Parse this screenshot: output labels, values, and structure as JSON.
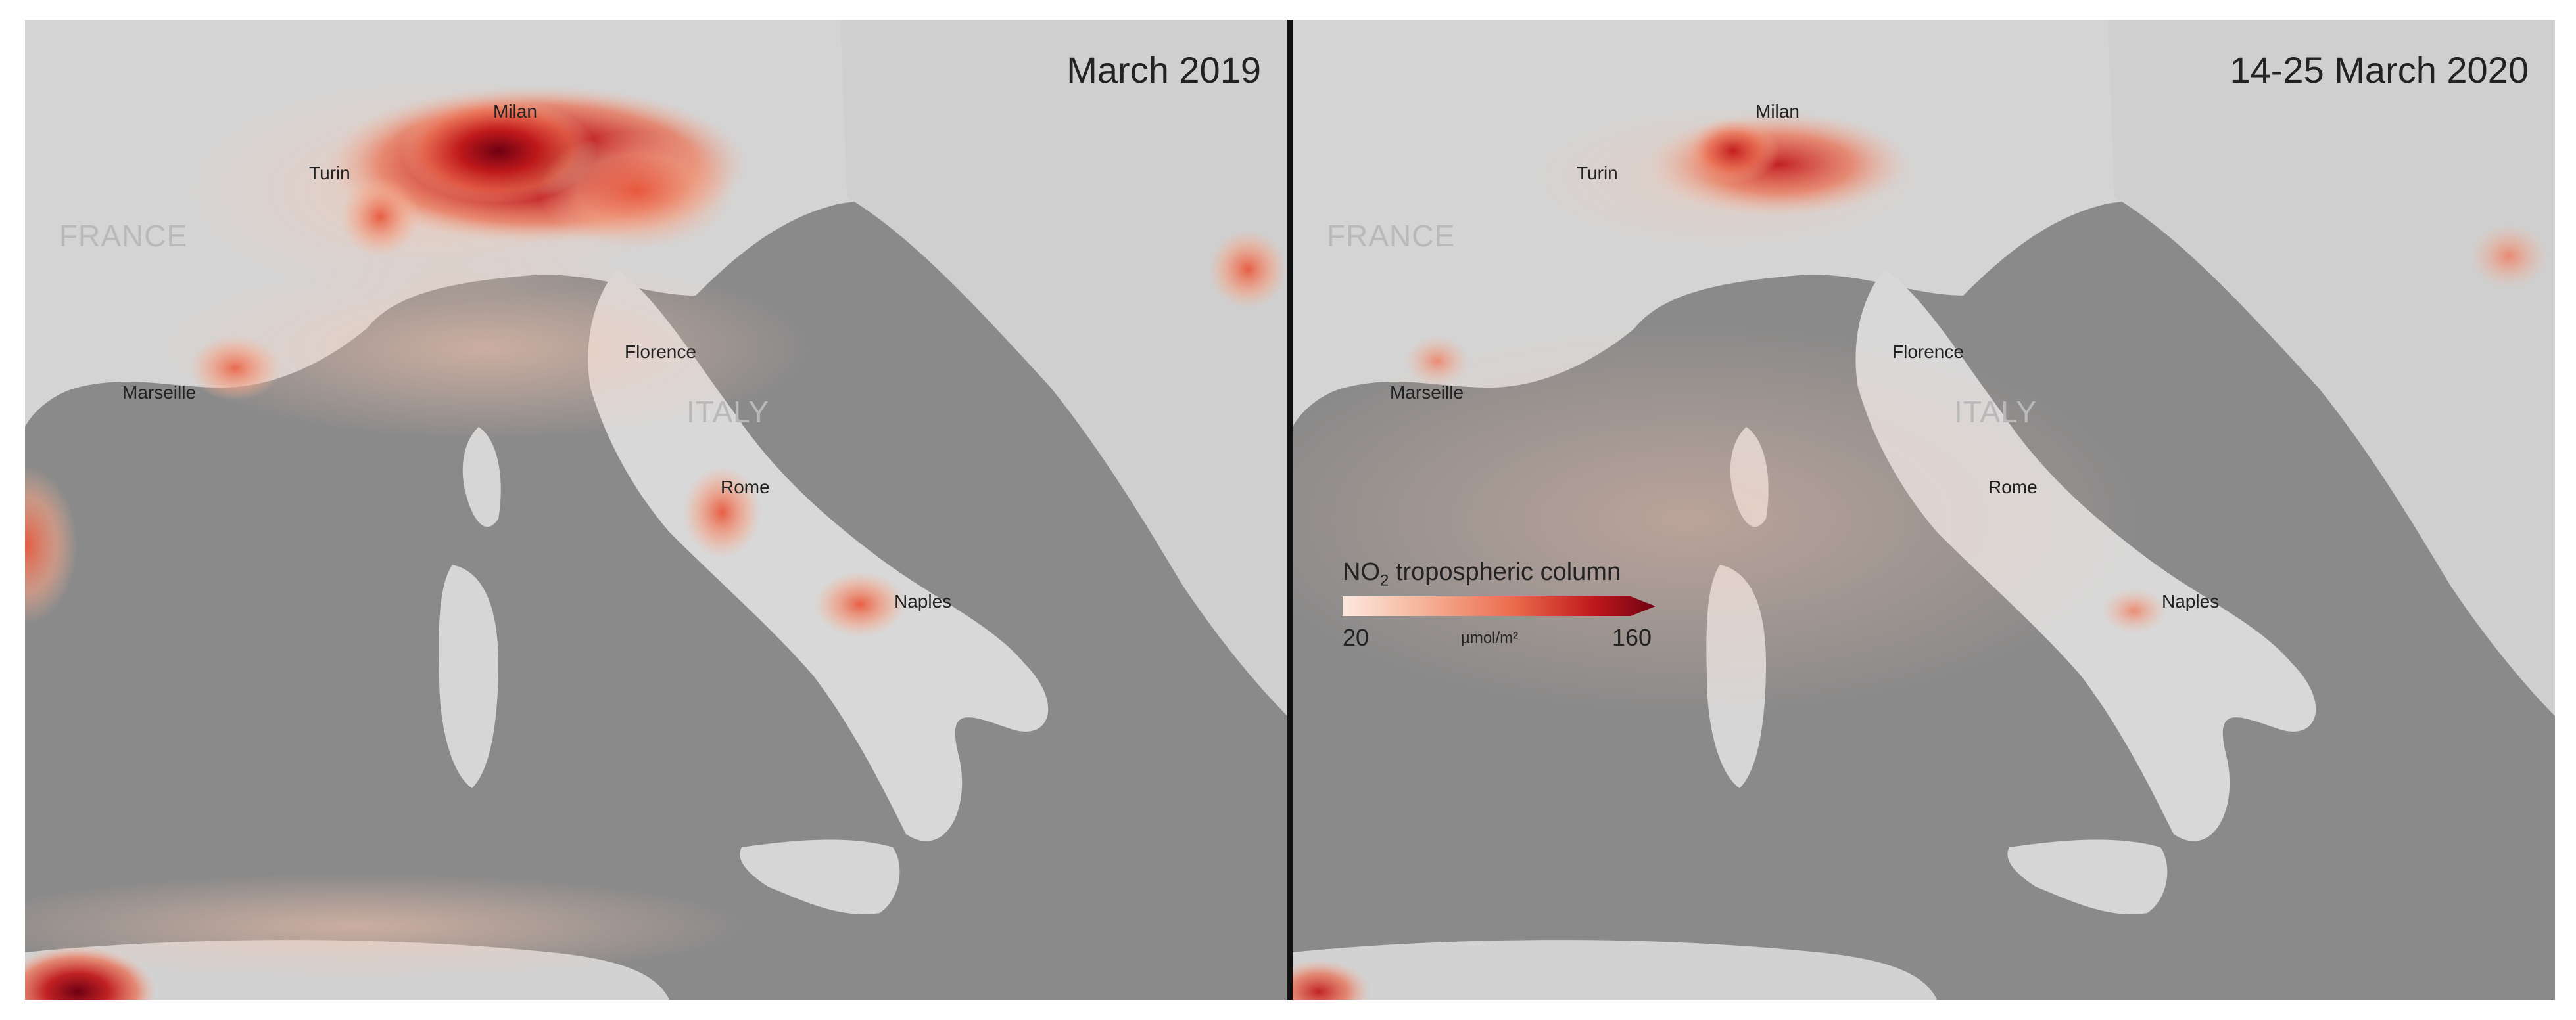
{
  "panels": [
    {
      "title": "March 2019",
      "countries": [
        "FRANCE",
        "ITALY"
      ],
      "cities": [
        "Milan",
        "Turin",
        "Marseille",
        "Florence",
        "Rome",
        "Naples"
      ]
    },
    {
      "title": "14-25 March 2020",
      "countries": [
        "FRANCE",
        "ITALY"
      ],
      "cities": [
        "Milan",
        "Turin",
        "Marseille",
        "Florence",
        "Rome",
        "Naples"
      ]
    }
  ],
  "legend": {
    "title": "NO",
    "title_sub": "2",
    "title_rest": " tropospheric column",
    "min": "20",
    "max": "160",
    "unit": "µmol/m²",
    "colors": [
      "#fde9e0",
      "#f6b59a",
      "#ea6a4c",
      "#c0191b",
      "#6e0012"
    ]
  }
}
